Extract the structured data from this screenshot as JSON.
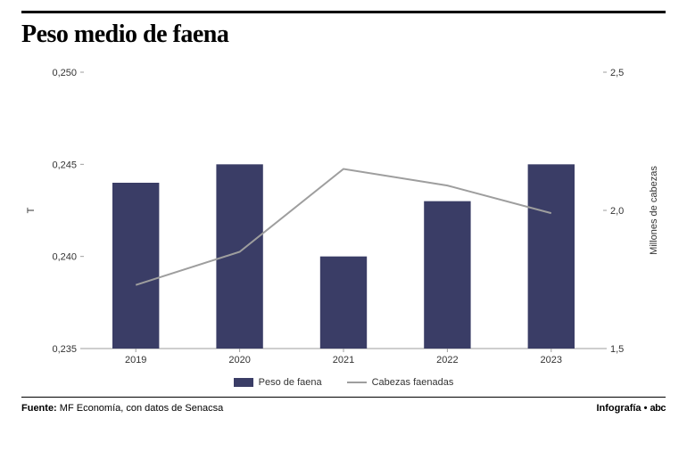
{
  "title": "Peso medio de faena",
  "chart": {
    "type": "bar_line_dual_axis",
    "categories": [
      "2019",
      "2020",
      "2021",
      "2022",
      "2023"
    ],
    "bars": {
      "label": "Peso de faena",
      "values": [
        0.244,
        0.245,
        0.24,
        0.243,
        0.245
      ],
      "color": "#3a3d66",
      "width": 0.45
    },
    "line": {
      "label": "Cabezas faenadas",
      "values": [
        1.73,
        1.85,
        2.15,
        2.09,
        1.99
      ],
      "color": "#9e9e9e",
      "stroke_width": 2
    },
    "y_left": {
      "title": "T",
      "min": 0.235,
      "max": 0.25,
      "ticks": [
        0.235,
        0.24,
        0.245,
        0.25
      ],
      "tick_labels": [
        "0,235",
        "0,240",
        "0,245",
        "0,250"
      ]
    },
    "y_right": {
      "title": "Millones de cabezas",
      "min": 1.5,
      "max": 2.5,
      "ticks": [
        1.5,
        2.0,
        2.5
      ],
      "tick_labels": [
        "1,5",
        "2,0",
        "2,5"
      ]
    },
    "plot": {
      "bg": "#ffffff",
      "axis_color": "#9e9e9e",
      "tick_color": "#9e9e9e",
      "label_fontsize": 11,
      "title_fontsize": 28
    }
  },
  "footer": {
    "source_label": "Fuente:",
    "source_text": "MF Economía, con datos de Senacsa",
    "right_label": "Infografía •",
    "brand": "abc"
  }
}
